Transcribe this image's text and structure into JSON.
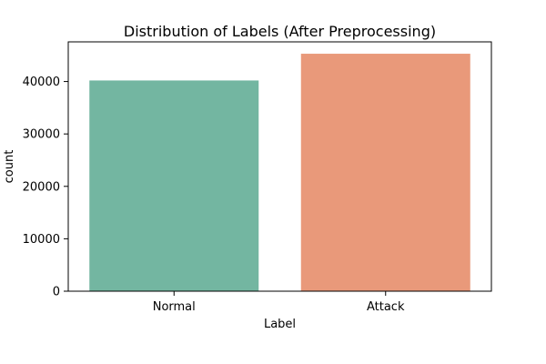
{
  "chart_data": {
    "type": "bar",
    "title": "Distribution of Labels (After Preprocessing)",
    "xlabel": "Label",
    "ylabel": "count",
    "categories": [
      "Normal",
      "Attack"
    ],
    "values": [
      40200,
      45300
    ],
    "colors": [
      "#73b6a1",
      "#e9997a"
    ],
    "ylim": [
      0,
      47565
    ],
    "yticks": [
      0,
      10000,
      20000,
      30000,
      40000
    ],
    "grid": false,
    "legend": "none"
  }
}
